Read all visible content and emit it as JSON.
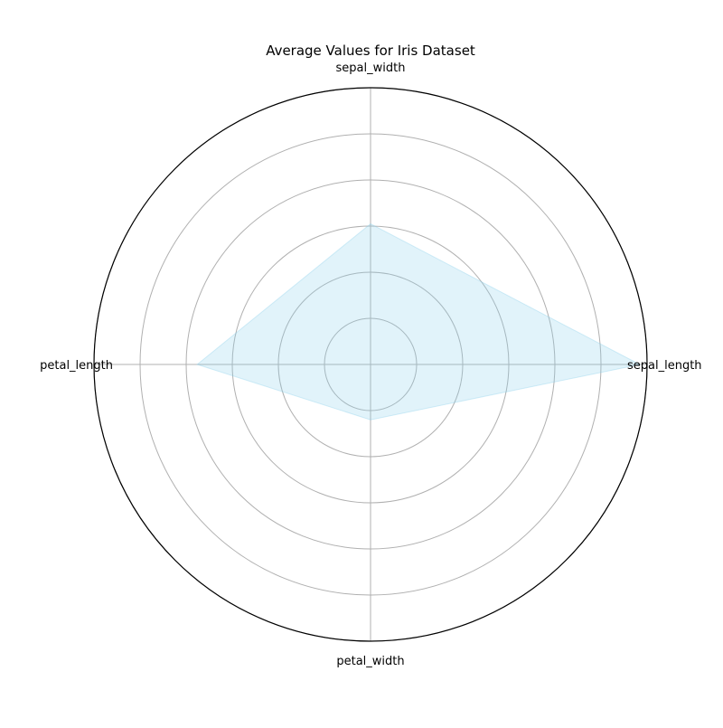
{
  "chart_data": {
    "type": "radar",
    "title": "Average Values for Iris Dataset",
    "axes": [
      "sepal_length",
      "sepal_width",
      "petal_length",
      "petal_width"
    ],
    "series": [
      {
        "values": [
          5.84,
          3.05,
          3.76,
          1.2
        ]
      }
    ],
    "rmax": 6.0,
    "grid_rings": [
      1,
      2,
      3,
      4,
      5,
      6
    ],
    "grid": true,
    "radial_tick_labels": false,
    "colors": {
      "fill": "#87ceeb",
      "outline": "#000000",
      "grid": "#b0b0b0"
    }
  }
}
